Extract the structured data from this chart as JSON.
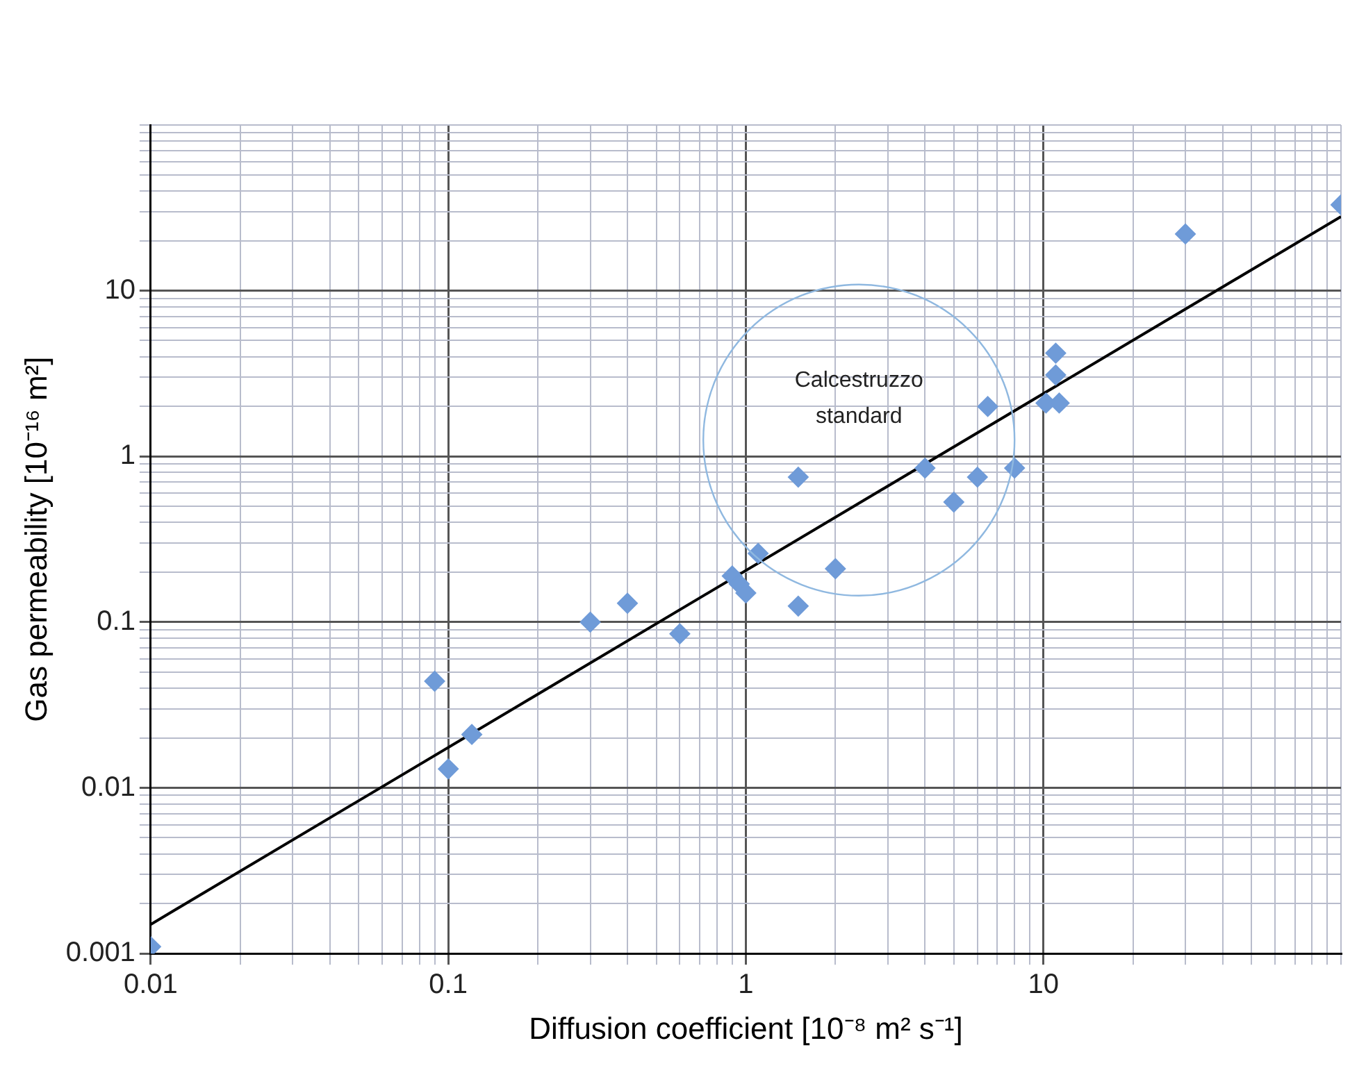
{
  "chart_data": {
    "type": "scatter",
    "xlabel": "Diffusion coefficient [10⁻⁸ m² s⁻¹]",
    "ylabel": "Gas permeability [10⁻¹⁶ m²]",
    "log": "xy",
    "grid": true,
    "legend": false,
    "xlim": [
      0.01,
      100
    ],
    "ylim": [
      0.001,
      100
    ],
    "xticks": [
      0.01,
      {
        "value": 0.02,
        "label": null
      },
      {
        "value": 0.03,
        "label": null
      },
      {
        "value": 0.04,
        "label": null
      },
      {
        "value": 0.05,
        "label": null
      },
      {
        "value": 0.06,
        "label": null
      },
      {
        "value": 0.07,
        "label": null
      },
      {
        "value": 0.08,
        "label": null
      },
      {
        "value": 0.09,
        "label": null
      },
      0.1,
      {
        "value": 0.2,
        "label": null
      },
      {
        "value": 0.3,
        "label": null
      },
      {
        "value": 0.4,
        "label": null
      },
      {
        "value": 0.5,
        "label": null
      },
      {
        "value": 0.6,
        "label": null
      },
      {
        "value": 0.7,
        "label": null
      },
      {
        "value": 0.8,
        "label": null
      },
      {
        "value": 0.9,
        "label": null
      },
      1,
      {
        "value": 2,
        "label": null
      },
      {
        "value": 3,
        "label": null
      },
      {
        "value": 4,
        "label": null
      },
      {
        "value": 5,
        "label": null
      },
      {
        "value": 6,
        "label": null
      },
      {
        "value": 7,
        "label": null
      },
      {
        "value": 8,
        "label": null
      },
      {
        "value": 9,
        "label": null
      },
      10,
      {
        "value": 20,
        "label": null
      },
      {
        "value": 30,
        "label": null
      },
      {
        "value": 40,
        "label": null
      },
      {
        "value": 50,
        "label": null
      },
      {
        "value": 60,
        "label": null
      },
      {
        "value": 70,
        "label": null
      },
      {
        "value": 80,
        "label": null
      },
      {
        "value": 90,
        "label": null
      },
      {
        "value": 100,
        "label": null
      }
    ],
    "yticks": [
      0.001,
      {
        "value": 0.002,
        "label": null
      },
      {
        "value": 0.003,
        "label": null
      },
      {
        "value": 0.004,
        "label": null
      },
      {
        "value": 0.005,
        "label": null
      },
      {
        "value": 0.006,
        "label": null
      },
      {
        "value": 0.007,
        "label": null
      },
      {
        "value": 0.008,
        "label": null
      },
      {
        "value": 0.009,
        "label": null
      },
      0.01,
      {
        "value": 0.02,
        "label": null
      },
      {
        "value": 0.03,
        "label": null
      },
      {
        "value": 0.04,
        "label": null
      },
      {
        "value": 0.05,
        "label": null
      },
      {
        "value": 0.06,
        "label": null
      },
      {
        "value": 0.07,
        "label": null
      },
      {
        "value": 0.08,
        "label": null
      },
      {
        "value": 0.09,
        "label": null
      },
      0.1,
      {
        "value": 0.2,
        "label": null
      },
      {
        "value": 0.3,
        "label": null
      },
      {
        "value": 0.4,
        "label": null
      },
      {
        "value": 0.5,
        "label": null
      },
      {
        "value": 0.6,
        "label": null
      },
      {
        "value": 0.7,
        "label": null
      },
      {
        "value": 0.8,
        "label": null
      },
      {
        "value": 0.9,
        "label": null
      },
      1,
      {
        "value": 2,
        "label": null
      },
      {
        "value": 3,
        "label": null
      },
      {
        "value": 4,
        "label": null
      },
      {
        "value": 5,
        "label": null
      },
      {
        "value": 6,
        "label": null
      },
      {
        "value": 7,
        "label": null
      },
      {
        "value": 8,
        "label": null
      },
      {
        "value": 9,
        "label": null
      },
      10,
      {
        "value": 20,
        "label": null
      },
      {
        "value": 30,
        "label": null
      },
      {
        "value": 40,
        "label": null
      },
      {
        "value": 50,
        "label": null
      },
      {
        "value": 60,
        "label": null
      },
      {
        "value": 70,
        "label": null
      },
      {
        "value": 80,
        "label": null
      },
      {
        "value": 90,
        "label": null
      },
      {
        "value": 100,
        "label": null
      }
    ],
    "annotations": [
      "Calcestruzzo standard"
    ],
    "series": [
      {
        "marker": "diamond",
        "color": "#6f9bd8",
        "x": [
          0.01,
          0.09,
          0.1,
          0.12,
          0.3,
          0.4,
          0.6,
          0.9,
          0.95,
          1.0,
          1.1,
          1.5,
          1.5,
          2,
          4,
          5,
          6,
          6.5,
          8,
          10.2,
          11.3,
          11,
          11,
          30,
          100
        ],
        "values": [
          0.0011,
          0.044,
          0.013,
          0.021,
          0.1,
          0.13,
          0.085,
          0.19,
          0.17,
          0.15,
          0.26,
          0.75,
          0.125,
          0.21,
          0.85,
          0.53,
          0.75,
          2,
          0.85,
          2.1,
          2.1,
          3.1,
          4.2,
          22,
          33
        ]
      },
      {
        "type": "line",
        "marker": "none",
        "color": "#000000",
        "x": [
          0.01,
          100
        ],
        "values": [
          0.0015,
          28
        ]
      }
    ]
  }
}
